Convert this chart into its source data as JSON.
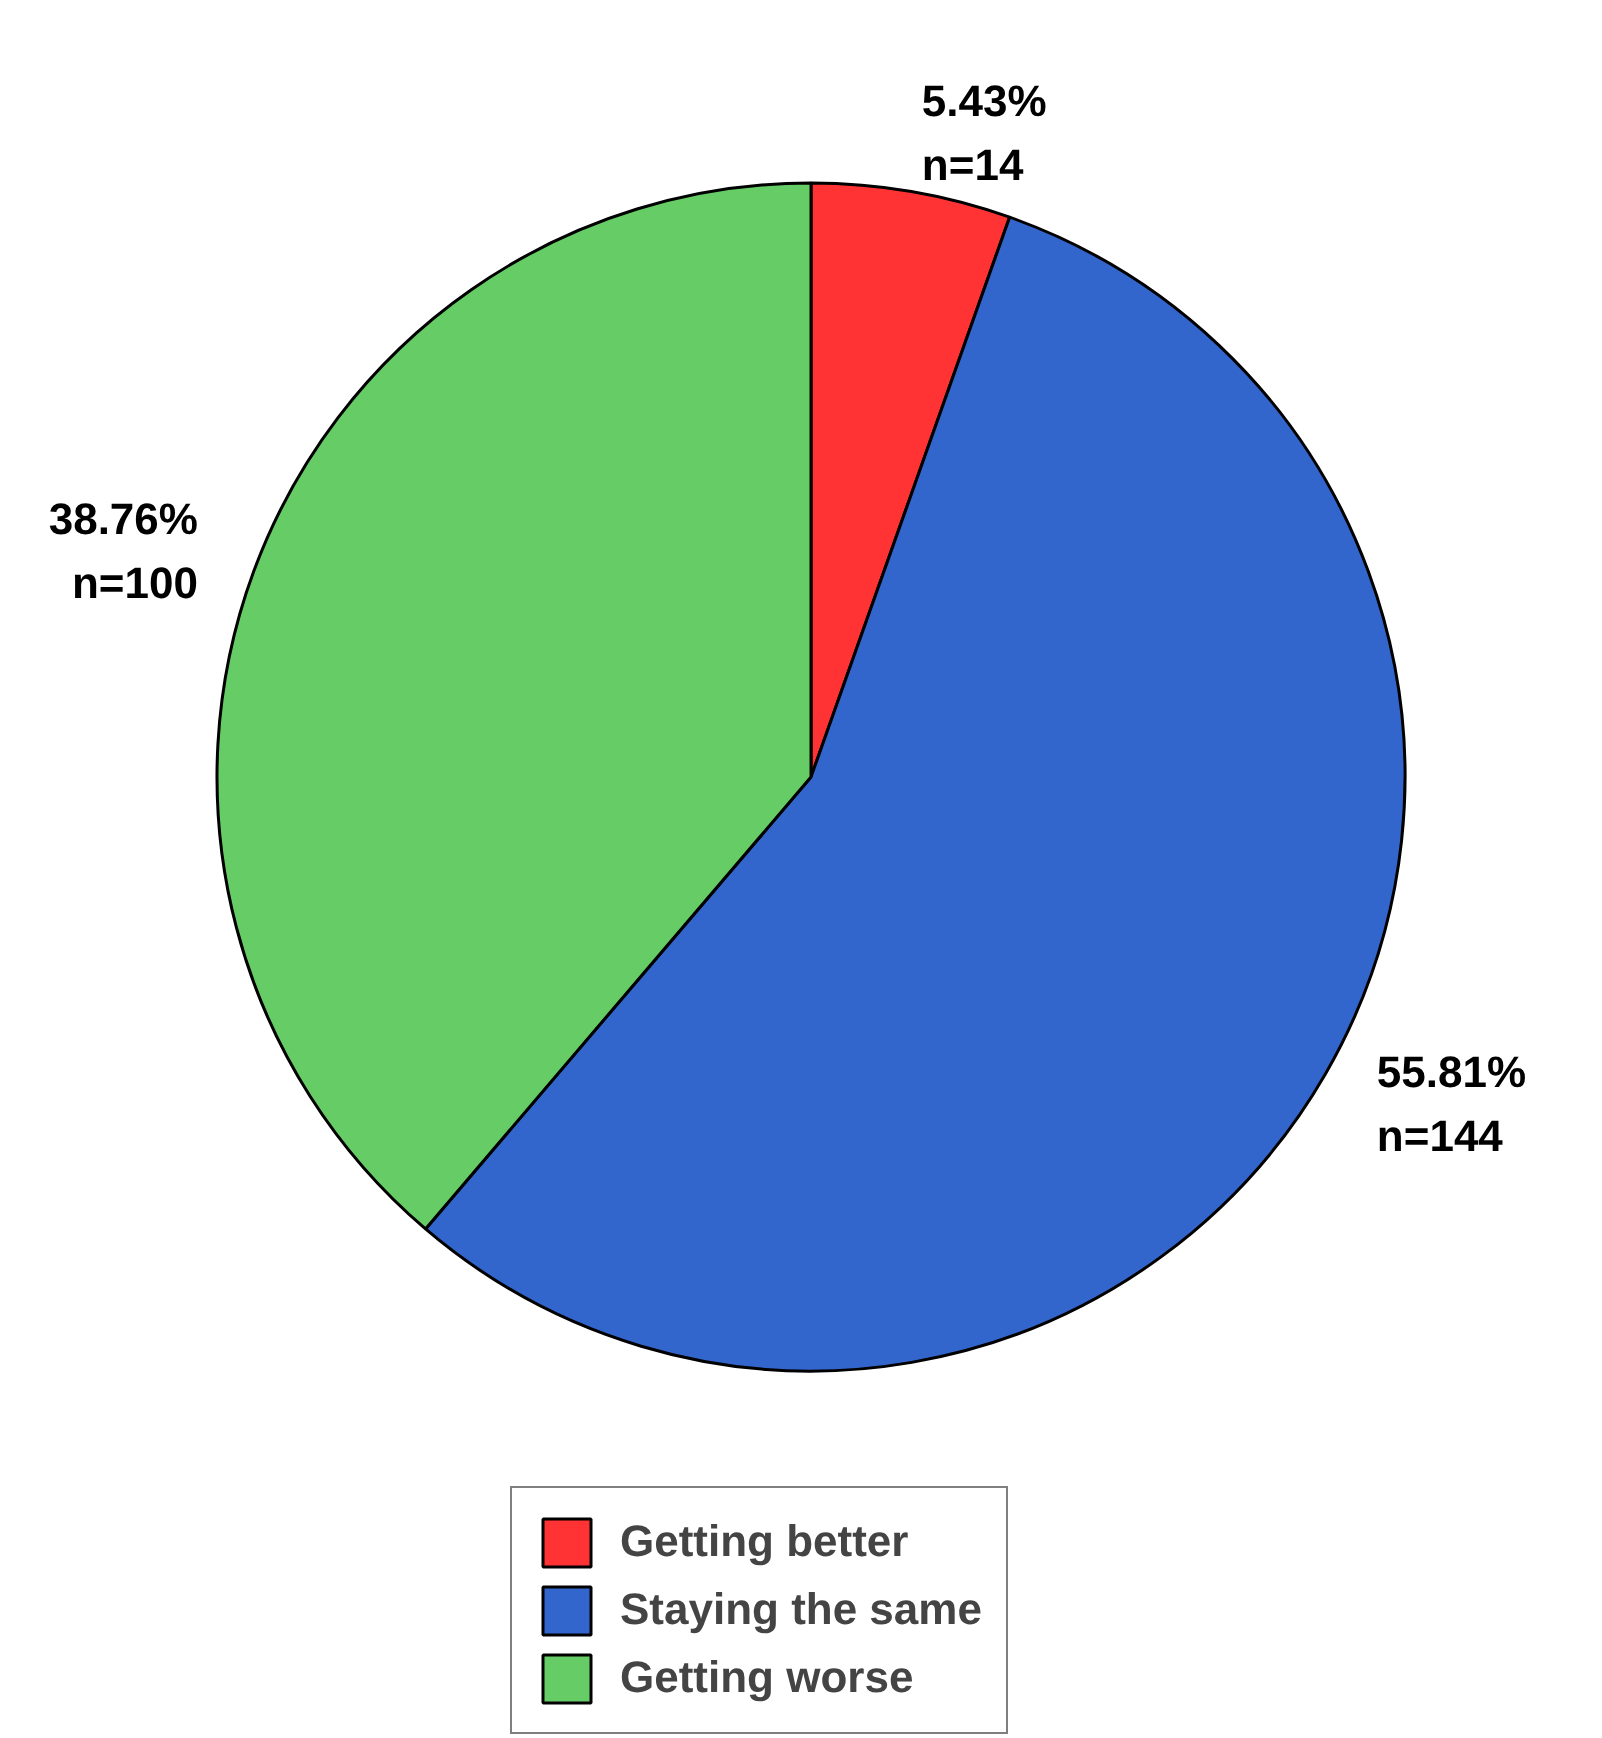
{
  "chart_data": {
    "type": "pie",
    "categories": [
      "Getting better",
      "Staying the same",
      "Getting worse"
    ],
    "values": [
      14,
      144,
      100
    ],
    "colors": [
      "#ff3333",
      "#3366cc",
      "#66cc66"
    ],
    "value_labels": [
      "5.43%\nn=14",
      "55.81%\nn=144",
      "38.76%\nn=100"
    ],
    "legend": "bottom"
  }
}
